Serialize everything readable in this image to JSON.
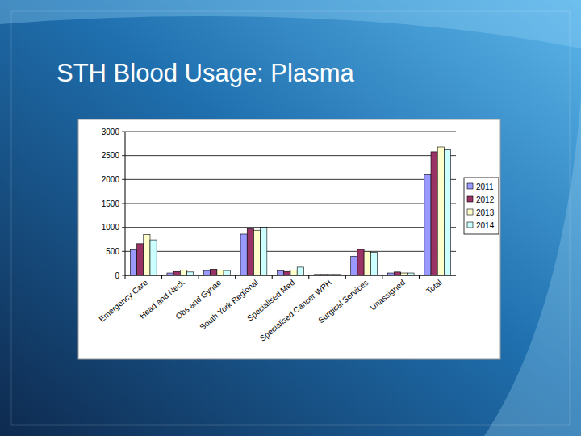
{
  "chart_data": {
    "type": "bar",
    "title": "STH Blood Usage:  Plasma",
    "categories": [
      "Emergency Care",
      "Head and Neck",
      "Obs and Gynae",
      "South York Regional",
      "Specialised Med",
      "Specialised Cancer WPH",
      "Surgical Services",
      "Unassigned",
      "Total"
    ],
    "series": [
      {
        "name": "2011",
        "color": "#9999ff",
        "values": [
          530,
          50,
          100,
          860,
          90,
          20,
          400,
          50,
          2100
        ]
      },
      {
        "name": "2012",
        "color": "#993366",
        "values": [
          660,
          80,
          130,
          970,
          80,
          20,
          540,
          70,
          2580
        ]
      },
      {
        "name": "2013",
        "color": "#ffffcc",
        "values": [
          850,
          110,
          110,
          940,
          110,
          20,
          500,
          50,
          2680
        ]
      },
      {
        "name": "2014",
        "color": "#ccffff",
        "values": [
          740,
          70,
          100,
          1000,
          170,
          20,
          480,
          50,
          2620
        ]
      }
    ],
    "ylim": [
      0,
      3000
    ],
    "yticks": [
      0,
      500,
      1000,
      1500,
      2000,
      2500,
      3000
    ],
    "grid": true,
    "legend": "right"
  }
}
